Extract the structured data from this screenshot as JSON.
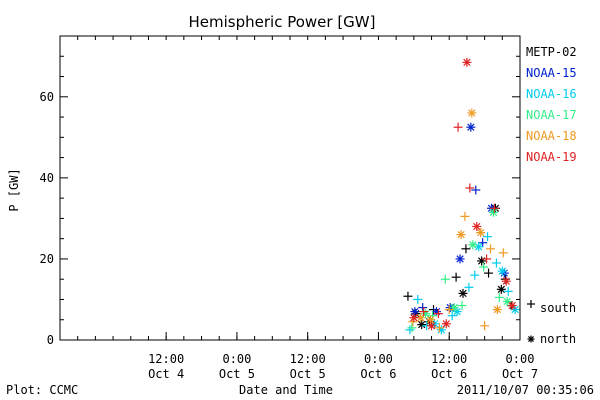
{
  "chart_data": {
    "type": "scatter",
    "title": "Hemispheric Power [GW]",
    "ylabel": "P [GW]",
    "xlabel": "Date and Time",
    "xlim": [
      "2011-10-03T18:00",
      "2011-10-07T00:00"
    ],
    "ylim": [
      0,
      75
    ],
    "y_ticks": [
      0,
      20,
      40,
      60
    ],
    "x_ticks": [
      {
        "t": "2011-10-04T12:00",
        "line1": "12:00",
        "line2": "Oct 4"
      },
      {
        "t": "2011-10-05T00:00",
        "line1": "0:00",
        "line2": "Oct 5"
      },
      {
        "t": "2011-10-05T12:00",
        "line1": "12:00",
        "line2": "Oct 5"
      },
      {
        "t": "2011-10-06T00:00",
        "line1": "0:00",
        "line2": "Oct 6"
      },
      {
        "t": "2011-10-06T12:00",
        "line1": "12:00",
        "line2": "Oct 6"
      },
      {
        "t": "2011-10-07T00:00",
        "line1": "0:00",
        "line2": "Oct 7"
      }
    ],
    "marker_legend": [
      {
        "marker": "+",
        "label": "south"
      },
      {
        "marker": "*",
        "label": "north"
      }
    ],
    "series": [
      {
        "name": "METP-02",
        "color": "#000000",
        "points": [
          {
            "t": "2011-10-06T05:00",
            "p": 10.8,
            "m": "+"
          },
          {
            "t": "2011-10-06T06:20",
            "p": 6.5,
            "m": "*"
          },
          {
            "t": "2011-10-06T07:20",
            "p": 3.8,
            "m": "*"
          },
          {
            "t": "2011-10-06T08:40",
            "p": 4.5,
            "m": "*"
          },
          {
            "t": "2011-10-06T09:20",
            "p": 7.5,
            "m": "+"
          },
          {
            "t": "2011-10-06T13:10",
            "p": 15.5,
            "m": "+"
          },
          {
            "t": "2011-10-06T14:20",
            "p": 11.5,
            "m": "*"
          },
          {
            "t": "2011-10-06T14:50",
            "p": 22.5,
            "m": "+"
          },
          {
            "t": "2011-10-06T17:30",
            "p": 19.5,
            "m": "*"
          },
          {
            "t": "2011-10-06T19:50",
            "p": 32.5,
            "m": "*"
          },
          {
            "t": "2011-10-06T18:40",
            "p": 16.5,
            "m": "+"
          },
          {
            "t": "2011-10-06T20:50",
            "p": 12.5,
            "m": "*"
          },
          {
            "t": "2011-10-06T21:30",
            "p": 15.0,
            "m": "+"
          },
          {
            "t": "2011-10-06T22:30",
            "p": 8.5,
            "m": "+"
          }
        ]
      },
      {
        "name": "NOAA-15",
        "color": "#0022cc",
        "points": [
          {
            "t": "2011-10-06T06:10",
            "p": 7.0,
            "m": "*"
          },
          {
            "t": "2011-10-06T07:30",
            "p": 8.0,
            "m": "+"
          },
          {
            "t": "2011-10-06T09:50",
            "p": 7.0,
            "m": "*"
          },
          {
            "t": "2011-10-06T12:10",
            "p": 8.0,
            "m": "*"
          },
          {
            "t": "2011-10-06T13:50",
            "p": 20.0,
            "m": "*"
          },
          {
            "t": "2011-10-06T15:40",
            "p": 52.5,
            "m": "*"
          },
          {
            "t": "2011-10-06T16:30",
            "p": 37.0,
            "m": "+"
          },
          {
            "t": "2011-10-06T17:40",
            "p": 24.0,
            "m": "+"
          },
          {
            "t": "2011-10-06T19:10",
            "p": 32.5,
            "m": "*"
          },
          {
            "t": "2011-10-06T21:20",
            "p": 16.5,
            "m": "*"
          }
        ]
      },
      {
        "name": "NOAA-16",
        "color": "#00ccee",
        "points": [
          {
            "t": "2011-10-06T05:20",
            "p": 2.5,
            "m": "+"
          },
          {
            "t": "2011-10-06T06:40",
            "p": 10.0,
            "m": "+"
          },
          {
            "t": "2011-10-06T08:10",
            "p": 3.5,
            "m": "+"
          },
          {
            "t": "2011-10-06T09:30",
            "p": 4.0,
            "m": "*"
          },
          {
            "t": "2011-10-06T10:40",
            "p": 2.5,
            "m": "*"
          },
          {
            "t": "2011-10-06T12:30",
            "p": 6.0,
            "m": "+"
          },
          {
            "t": "2011-10-06T13:20",
            "p": 7.0,
            "m": "*"
          },
          {
            "t": "2011-10-06T15:20",
            "p": 13.0,
            "m": "+"
          },
          {
            "t": "2011-10-06T16:20",
            "p": 16.0,
            "m": "+"
          },
          {
            "t": "2011-10-06T17:00",
            "p": 23.0,
            "m": "*"
          },
          {
            "t": "2011-10-06T18:30",
            "p": 25.5,
            "m": "+"
          },
          {
            "t": "2011-10-06T20:00",
            "p": 19.0,
            "m": "+"
          },
          {
            "t": "2011-10-06T21:00",
            "p": 17.0,
            "m": "*"
          },
          {
            "t": "2011-10-06T22:00",
            "p": 12.0,
            "m": "+"
          },
          {
            "t": "2011-10-06T23:10",
            "p": 7.5,
            "m": "*"
          }
        ]
      },
      {
        "name": "NOAA-17",
        "color": "#33ee88",
        "points": [
          {
            "t": "2011-10-06T05:40",
            "p": 3.0,
            "m": "+"
          },
          {
            "t": "2011-10-06T08:00",
            "p": 6.5,
            "m": "*"
          },
          {
            "t": "2011-10-06T09:10",
            "p": 6.0,
            "m": "+"
          },
          {
            "t": "2011-10-06T11:20",
            "p": 15.0,
            "m": "+"
          },
          {
            "t": "2011-10-06T12:50",
            "p": 8.0,
            "m": "*"
          },
          {
            "t": "2011-10-06T14:10",
            "p": 8.5,
            "m": "+"
          },
          {
            "t": "2011-10-06T16:00",
            "p": 23.5,
            "m": "*"
          },
          {
            "t": "2011-10-06T17:50",
            "p": 18.0,
            "m": "+"
          },
          {
            "t": "2011-10-06T19:30",
            "p": 31.5,
            "m": "*"
          },
          {
            "t": "2011-10-06T20:30",
            "p": 10.5,
            "m": "+"
          },
          {
            "t": "2011-10-06T21:50",
            "p": 9.5,
            "m": "*"
          }
        ]
      },
      {
        "name": "NOAA-18",
        "color": "#ee9922",
        "points": [
          {
            "t": "2011-10-06T05:50",
            "p": 4.5,
            "m": "+"
          },
          {
            "t": "2011-10-06T07:10",
            "p": 5.5,
            "m": "*"
          },
          {
            "t": "2011-10-06T08:50",
            "p": 5.0,
            "m": "*"
          },
          {
            "t": "2011-10-06T10:20",
            "p": 3.0,
            "m": "+"
          },
          {
            "t": "2011-10-06T12:00",
            "p": 7.5,
            "m": "+"
          },
          {
            "t": "2011-10-06T14:00",
            "p": 26.0,
            "m": "*"
          },
          {
            "t": "2011-10-06T14:40",
            "p": 30.5,
            "m": "+"
          },
          {
            "t": "2011-10-06T15:50",
            "p": 56.0,
            "m": "*"
          },
          {
            "t": "2011-10-06T17:20",
            "p": 26.5,
            "m": "*"
          },
          {
            "t": "2011-10-06T18:00",
            "p": 3.5,
            "m": "+"
          },
          {
            "t": "2011-10-06T19:00",
            "p": 22.5,
            "m": "+"
          },
          {
            "t": "2011-10-06T20:10",
            "p": 7.5,
            "m": "*"
          },
          {
            "t": "2011-10-06T21:10",
            "p": 21.5,
            "m": "+"
          }
        ]
      },
      {
        "name": "NOAA-19",
        "color": "#dd2222",
        "points": [
          {
            "t": "2011-10-06T06:00",
            "p": 5.5,
            "m": "*"
          },
          {
            "t": "2011-10-06T07:40",
            "p": 7.0,
            "m": "+"
          },
          {
            "t": "2011-10-06T09:00",
            "p": 3.5,
            "m": "*"
          },
          {
            "t": "2011-10-06T10:10",
            "p": 6.5,
            "m": "+"
          },
          {
            "t": "2011-10-06T11:30",
            "p": 4.0,
            "m": "*"
          },
          {
            "t": "2011-10-06T13:30",
            "p": 52.5,
            "m": "+"
          },
          {
            "t": "2011-10-06T15:00",
            "p": 68.5,
            "m": "*"
          },
          {
            "t": "2011-10-06T15:30",
            "p": 37.5,
            "m": "+"
          },
          {
            "t": "2011-10-06T16:40",
            "p": 28.0,
            "m": "*"
          },
          {
            "t": "2011-10-06T18:20",
            "p": 20.0,
            "m": "+"
          },
          {
            "t": "2011-10-06T19:40",
            "p": 32.5,
            "m": "+"
          },
          {
            "t": "2011-10-06T21:40",
            "p": 14.5,
            "m": "*"
          },
          {
            "t": "2011-10-06T22:40",
            "p": 8.5,
            "m": "*"
          }
        ]
      }
    ]
  },
  "footer": {
    "plot_label": "Plot: CCMC",
    "timestamp": "2011/10/07 00:35:06"
  }
}
